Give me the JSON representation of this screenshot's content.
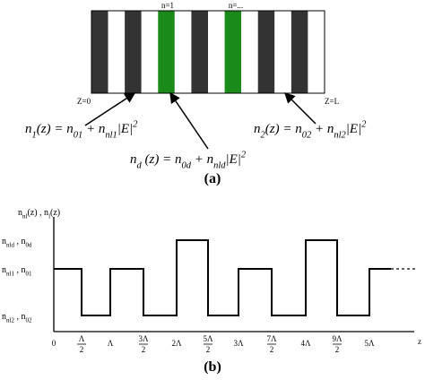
{
  "figure_a": {
    "stripe_labels": [
      "n=1",
      "n=..."
    ],
    "ends": [
      "Z=0",
      "Z=L"
    ],
    "equations": [
      [
        {
          "text": "n",
          "role": "base"
        },
        {
          "text": "1",
          "role": "sub"
        },
        {
          "text": "(z) = n",
          "role": "base"
        },
        {
          "text": "01",
          "role": "sub"
        },
        {
          "text": " + n",
          "role": "base"
        },
        {
          "text": "nl1",
          "role": "sub"
        },
        {
          "text": "|E|",
          "role": "base"
        },
        {
          "text": "2",
          "role": "sup"
        }
      ],
      [
        {
          "text": "n",
          "role": "base"
        },
        {
          "text": "d",
          "role": "sub"
        },
        {
          "text": " (z) = n",
          "role": "base"
        },
        {
          "text": "0d",
          "role": "sub"
        },
        {
          "text": " + n",
          "role": "base"
        },
        {
          "text": "nld",
          "role": "sub"
        },
        {
          "text": "|E|",
          "role": "base"
        },
        {
          "text": "2",
          "role": "sup"
        }
      ],
      [
        {
          "text": "n",
          "role": "base"
        },
        {
          "text": "2",
          "role": "sub"
        },
        {
          "text": "(z) = n",
          "role": "base"
        },
        {
          "text": "02",
          "role": "sub"
        },
        {
          "text": " + n",
          "role": "base"
        },
        {
          "text": "nl2",
          "role": "sub"
        },
        {
          "text": "|E|",
          "role": "base"
        },
        {
          "text": "2",
          "role": "sup"
        }
      ]
    ],
    "caption": "(a)"
  },
  "figure_b": {
    "y_label": [
      {
        "text": "n",
        "role": "base"
      },
      {
        "text": "nl",
        "role": "sub"
      },
      {
        "text": "(z) , n",
        "role": "base"
      },
      {
        "text": "l",
        "role": "sub"
      },
      {
        "text": "(z)",
        "role": "base"
      }
    ],
    "levels": [
      [
        {
          "text": "n",
          "role": "base"
        },
        {
          "text": "nld",
          "role": "sub"
        },
        {
          "text": " , n",
          "role": "base"
        },
        {
          "text": "0d",
          "role": "sub"
        }
      ],
      [
        {
          "text": "n",
          "role": "base"
        },
        {
          "text": "nl1",
          "role": "sub"
        },
        {
          "text": " , n",
          "role": "base"
        },
        {
          "text": "01",
          "role": "sub"
        }
      ],
      [
        {
          "text": "n",
          "role": "base"
        },
        {
          "text": "nl2",
          "role": "sub"
        },
        {
          "text": " , n",
          "role": "base"
        },
        {
          "text": "02",
          "role": "sub"
        }
      ]
    ],
    "x_ticks": [
      {
        "text": "0"
      },
      {
        "num": "Λ",
        "den": "2"
      },
      {
        "text": "Λ"
      },
      {
        "num": "3Λ",
        "den": "2"
      },
      {
        "text": "2Λ"
      },
      {
        "num": "5Λ",
        "den": "2"
      },
      {
        "text": "3Λ"
      },
      {
        "num": "7Λ",
        "den": "2"
      },
      {
        "text": "4Λ"
      },
      {
        "num": "9Λ",
        "den": "2"
      },
      {
        "text": "5Λ"
      }
    ],
    "x_label": "z",
    "caption": "(b)"
  }
}
